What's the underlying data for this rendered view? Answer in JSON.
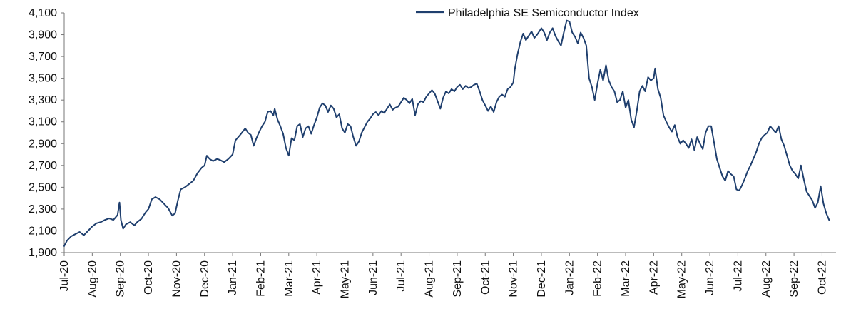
{
  "chart_data": {
    "type": "line",
    "title": "",
    "xlabel": "",
    "ylabel": "",
    "ylim": [
      1900,
      4100
    ],
    "yticks": [
      1900,
      2100,
      2300,
      2500,
      2700,
      2900,
      3100,
      3300,
      3500,
      3700,
      3900,
      4100
    ],
    "ytick_labels": [
      "1,900",
      "2,100",
      "2,300",
      "2,500",
      "2,700",
      "2,900",
      "3,100",
      "3,300",
      "3,500",
      "3,700",
      "3,900",
      "4,100"
    ],
    "xtick_labels": [
      "Jul-20",
      "Aug-20",
      "Sep-20",
      "Oct-20",
      "Nov-20",
      "Dec-20",
      "Jan-21",
      "Feb-21",
      "Mar-21",
      "Apr-21",
      "May-21",
      "Jun-21",
      "Jul-21",
      "Aug-21",
      "Sep-21",
      "Oct-21",
      "Nov-21",
      "Dec-21",
      "Jan-22",
      "Feb-22",
      "Mar-22",
      "Apr-22",
      "May-22",
      "Jun-22",
      "Jul-22",
      "Aug-22",
      "Sep-22",
      "Oct-22"
    ],
    "grid": false,
    "legend": "top-center",
    "series": [
      {
        "name": "Philadelphia SE Semiconductor Index",
        "color": "#1f3f6e",
        "points": [
          [
            0,
            1960
          ],
          [
            0.1,
            2010
          ],
          [
            0.25,
            2050
          ],
          [
            0.4,
            2070
          ],
          [
            0.55,
            2090
          ],
          [
            0.7,
            2060
          ],
          [
            0.85,
            2100
          ],
          [
            1.0,
            2140
          ],
          [
            1.15,
            2170
          ],
          [
            1.3,
            2180
          ],
          [
            1.45,
            2200
          ],
          [
            1.6,
            2215
          ],
          [
            1.75,
            2200
          ],
          [
            1.9,
            2245
          ],
          [
            1.97,
            2360
          ],
          [
            2.02,
            2200
          ],
          [
            2.1,
            2120
          ],
          [
            2.2,
            2160
          ],
          [
            2.35,
            2180
          ],
          [
            2.5,
            2150
          ],
          [
            2.6,
            2180
          ],
          [
            2.75,
            2210
          ],
          [
            2.9,
            2270
          ],
          [
            3.0,
            2300
          ],
          [
            3.12,
            2390
          ],
          [
            3.25,
            2410
          ],
          [
            3.4,
            2390
          ],
          [
            3.55,
            2350
          ],
          [
            3.7,
            2310
          ],
          [
            3.85,
            2240
          ],
          [
            3.95,
            2260
          ],
          [
            4.05,
            2380
          ],
          [
            4.15,
            2480
          ],
          [
            4.3,
            2500
          ],
          [
            4.45,
            2530
          ],
          [
            4.6,
            2560
          ],
          [
            4.75,
            2630
          ],
          [
            4.9,
            2680
          ],
          [
            5.0,
            2700
          ],
          [
            5.08,
            2790
          ],
          [
            5.18,
            2760
          ],
          [
            5.3,
            2740
          ],
          [
            5.45,
            2760
          ],
          [
            5.55,
            2750
          ],
          [
            5.7,
            2730
          ],
          [
            5.85,
            2760
          ],
          [
            6.0,
            2800
          ],
          [
            6.1,
            2930
          ],
          [
            6.2,
            2960
          ],
          [
            6.3,
            2990
          ],
          [
            6.45,
            3040
          ],
          [
            6.55,
            3000
          ],
          [
            6.65,
            2980
          ],
          [
            6.75,
            2880
          ],
          [
            6.85,
            2950
          ],
          [
            6.95,
            3010
          ],
          [
            7.05,
            3060
          ],
          [
            7.15,
            3100
          ],
          [
            7.25,
            3190
          ],
          [
            7.35,
            3200
          ],
          [
            7.45,
            3160
          ],
          [
            7.5,
            3220
          ],
          [
            7.6,
            3120
          ],
          [
            7.7,
            3060
          ],
          [
            7.8,
            2990
          ],
          [
            7.9,
            2860
          ],
          [
            8.0,
            2790
          ],
          [
            8.1,
            2950
          ],
          [
            8.2,
            2930
          ],
          [
            8.3,
            3060
          ],
          [
            8.4,
            3080
          ],
          [
            8.5,
            2960
          ],
          [
            8.6,
            3040
          ],
          [
            8.7,
            3060
          ],
          [
            8.8,
            2990
          ],
          [
            8.9,
            3070
          ],
          [
            9.0,
            3140
          ],
          [
            9.1,
            3230
          ],
          [
            9.2,
            3270
          ],
          [
            9.3,
            3250
          ],
          [
            9.4,
            3190
          ],
          [
            9.5,
            3250
          ],
          [
            9.6,
            3220
          ],
          [
            9.7,
            3140
          ],
          [
            9.8,
            3170
          ],
          [
            9.9,
            3040
          ],
          [
            10.0,
            3000
          ],
          [
            10.1,
            3080
          ],
          [
            10.2,
            3060
          ],
          [
            10.3,
            2960
          ],
          [
            10.4,
            2880
          ],
          [
            10.5,
            2920
          ],
          [
            10.6,
            3000
          ],
          [
            10.7,
            3050
          ],
          [
            10.8,
            3100
          ],
          [
            10.9,
            3130
          ],
          [
            11.0,
            3170
          ],
          [
            11.1,
            3190
          ],
          [
            11.2,
            3160
          ],
          [
            11.3,
            3200
          ],
          [
            11.4,
            3180
          ],
          [
            11.5,
            3220
          ],
          [
            11.6,
            3260
          ],
          [
            11.7,
            3210
          ],
          [
            11.8,
            3230
          ],
          [
            11.9,
            3240
          ],
          [
            12.0,
            3280
          ],
          [
            12.1,
            3320
          ],
          [
            12.2,
            3300
          ],
          [
            12.3,
            3270
          ],
          [
            12.4,
            3310
          ],
          [
            12.5,
            3160
          ],
          [
            12.6,
            3260
          ],
          [
            12.7,
            3290
          ],
          [
            12.8,
            3280
          ],
          [
            12.9,
            3330
          ],
          [
            13.0,
            3360
          ],
          [
            13.1,
            3390
          ],
          [
            13.2,
            3360
          ],
          [
            13.3,
            3290
          ],
          [
            13.4,
            3220
          ],
          [
            13.5,
            3320
          ],
          [
            13.6,
            3380
          ],
          [
            13.7,
            3360
          ],
          [
            13.8,
            3400
          ],
          [
            13.9,
            3380
          ],
          [
            14.0,
            3420
          ],
          [
            14.1,
            3440
          ],
          [
            14.2,
            3400
          ],
          [
            14.3,
            3430
          ],
          [
            14.4,
            3410
          ],
          [
            14.5,
            3420
          ],
          [
            14.6,
            3440
          ],
          [
            14.7,
            3450
          ],
          [
            14.8,
            3380
          ],
          [
            14.9,
            3300
          ],
          [
            15.0,
            3250
          ],
          [
            15.1,
            3200
          ],
          [
            15.2,
            3240
          ],
          [
            15.3,
            3190
          ],
          [
            15.4,
            3280
          ],
          [
            15.5,
            3330
          ],
          [
            15.6,
            3350
          ],
          [
            15.7,
            3330
          ],
          [
            15.8,
            3400
          ],
          [
            15.9,
            3420
          ],
          [
            16.0,
            3460
          ],
          [
            16.05,
            3580
          ],
          [
            16.15,
            3720
          ],
          [
            16.25,
            3830
          ],
          [
            16.35,
            3910
          ],
          [
            16.45,
            3850
          ],
          [
            16.55,
            3890
          ],
          [
            16.65,
            3930
          ],
          [
            16.75,
            3870
          ],
          [
            16.85,
            3900
          ],
          [
            17.0,
            3960
          ],
          [
            17.1,
            3920
          ],
          [
            17.2,
            3850
          ],
          [
            17.3,
            3920
          ],
          [
            17.4,
            3960
          ],
          [
            17.5,
            3890
          ],
          [
            17.6,
            3840
          ],
          [
            17.7,
            3800
          ],
          [
            17.8,
            3920
          ],
          [
            17.9,
            4030
          ],
          [
            18.0,
            4020
          ],
          [
            18.1,
            3920
          ],
          [
            18.2,
            3880
          ],
          [
            18.3,
            3820
          ],
          [
            18.4,
            3920
          ],
          [
            18.5,
            3870
          ],
          [
            18.6,
            3800
          ],
          [
            18.7,
            3500
          ],
          [
            18.8,
            3420
          ],
          [
            18.9,
            3300
          ],
          [
            19.0,
            3450
          ],
          [
            19.1,
            3580
          ],
          [
            19.2,
            3480
          ],
          [
            19.3,
            3620
          ],
          [
            19.4,
            3480
          ],
          [
            19.5,
            3420
          ],
          [
            19.6,
            3380
          ],
          [
            19.7,
            3280
          ],
          [
            19.8,
            3300
          ],
          [
            19.9,
            3380
          ],
          [
            20.0,
            3230
          ],
          [
            20.1,
            3300
          ],
          [
            20.2,
            3120
          ],
          [
            20.3,
            3050
          ],
          [
            20.4,
            3200
          ],
          [
            20.5,
            3380
          ],
          [
            20.6,
            3430
          ],
          [
            20.7,
            3380
          ],
          [
            20.8,
            3510
          ],
          [
            20.9,
            3480
          ],
          [
            21.0,
            3500
          ],
          [
            21.05,
            3590
          ],
          [
            21.15,
            3400
          ],
          [
            21.25,
            3320
          ],
          [
            21.35,
            3160
          ],
          [
            21.45,
            3100
          ],
          [
            21.55,
            3050
          ],
          [
            21.65,
            3010
          ],
          [
            21.75,
            3070
          ],
          [
            21.85,
            2960
          ],
          [
            21.95,
            2900
          ],
          [
            22.05,
            2930
          ],
          [
            22.15,
            2900
          ],
          [
            22.25,
            2860
          ],
          [
            22.35,
            2940
          ],
          [
            22.45,
            2840
          ],
          [
            22.55,
            2960
          ],
          [
            22.65,
            2900
          ],
          [
            22.75,
            2850
          ],
          [
            22.85,
            3000
          ],
          [
            22.95,
            3060
          ],
          [
            23.05,
            3060
          ],
          [
            23.15,
            2910
          ],
          [
            23.25,
            2760
          ],
          [
            23.35,
            2680
          ],
          [
            23.45,
            2600
          ],
          [
            23.55,
            2560
          ],
          [
            23.65,
            2650
          ],
          [
            23.75,
            2620
          ],
          [
            23.85,
            2600
          ],
          [
            23.95,
            2480
          ],
          [
            24.05,
            2470
          ],
          [
            24.15,
            2520
          ],
          [
            24.25,
            2580
          ],
          [
            24.35,
            2650
          ],
          [
            24.45,
            2700
          ],
          [
            24.55,
            2760
          ],
          [
            24.65,
            2820
          ],
          [
            24.75,
            2900
          ],
          [
            24.85,
            2950
          ],
          [
            24.95,
            2980
          ],
          [
            25.05,
            3000
          ],
          [
            25.15,
            3060
          ],
          [
            25.25,
            3030
          ],
          [
            25.35,
            3000
          ],
          [
            25.45,
            3060
          ],
          [
            25.55,
            2940
          ],
          [
            25.65,
            2880
          ],
          [
            25.75,
            2790
          ],
          [
            25.85,
            2700
          ],
          [
            25.95,
            2650
          ],
          [
            26.05,
            2620
          ],
          [
            26.15,
            2580
          ],
          [
            26.25,
            2700
          ],
          [
            26.35,
            2570
          ],
          [
            26.45,
            2460
          ],
          [
            26.55,
            2420
          ],
          [
            26.65,
            2380
          ],
          [
            26.75,
            2310
          ],
          [
            26.85,
            2360
          ],
          [
            26.95,
            2510
          ],
          [
            27.05,
            2350
          ],
          [
            27.15,
            2260
          ],
          [
            27.25,
            2200
          ]
        ]
      }
    ]
  }
}
